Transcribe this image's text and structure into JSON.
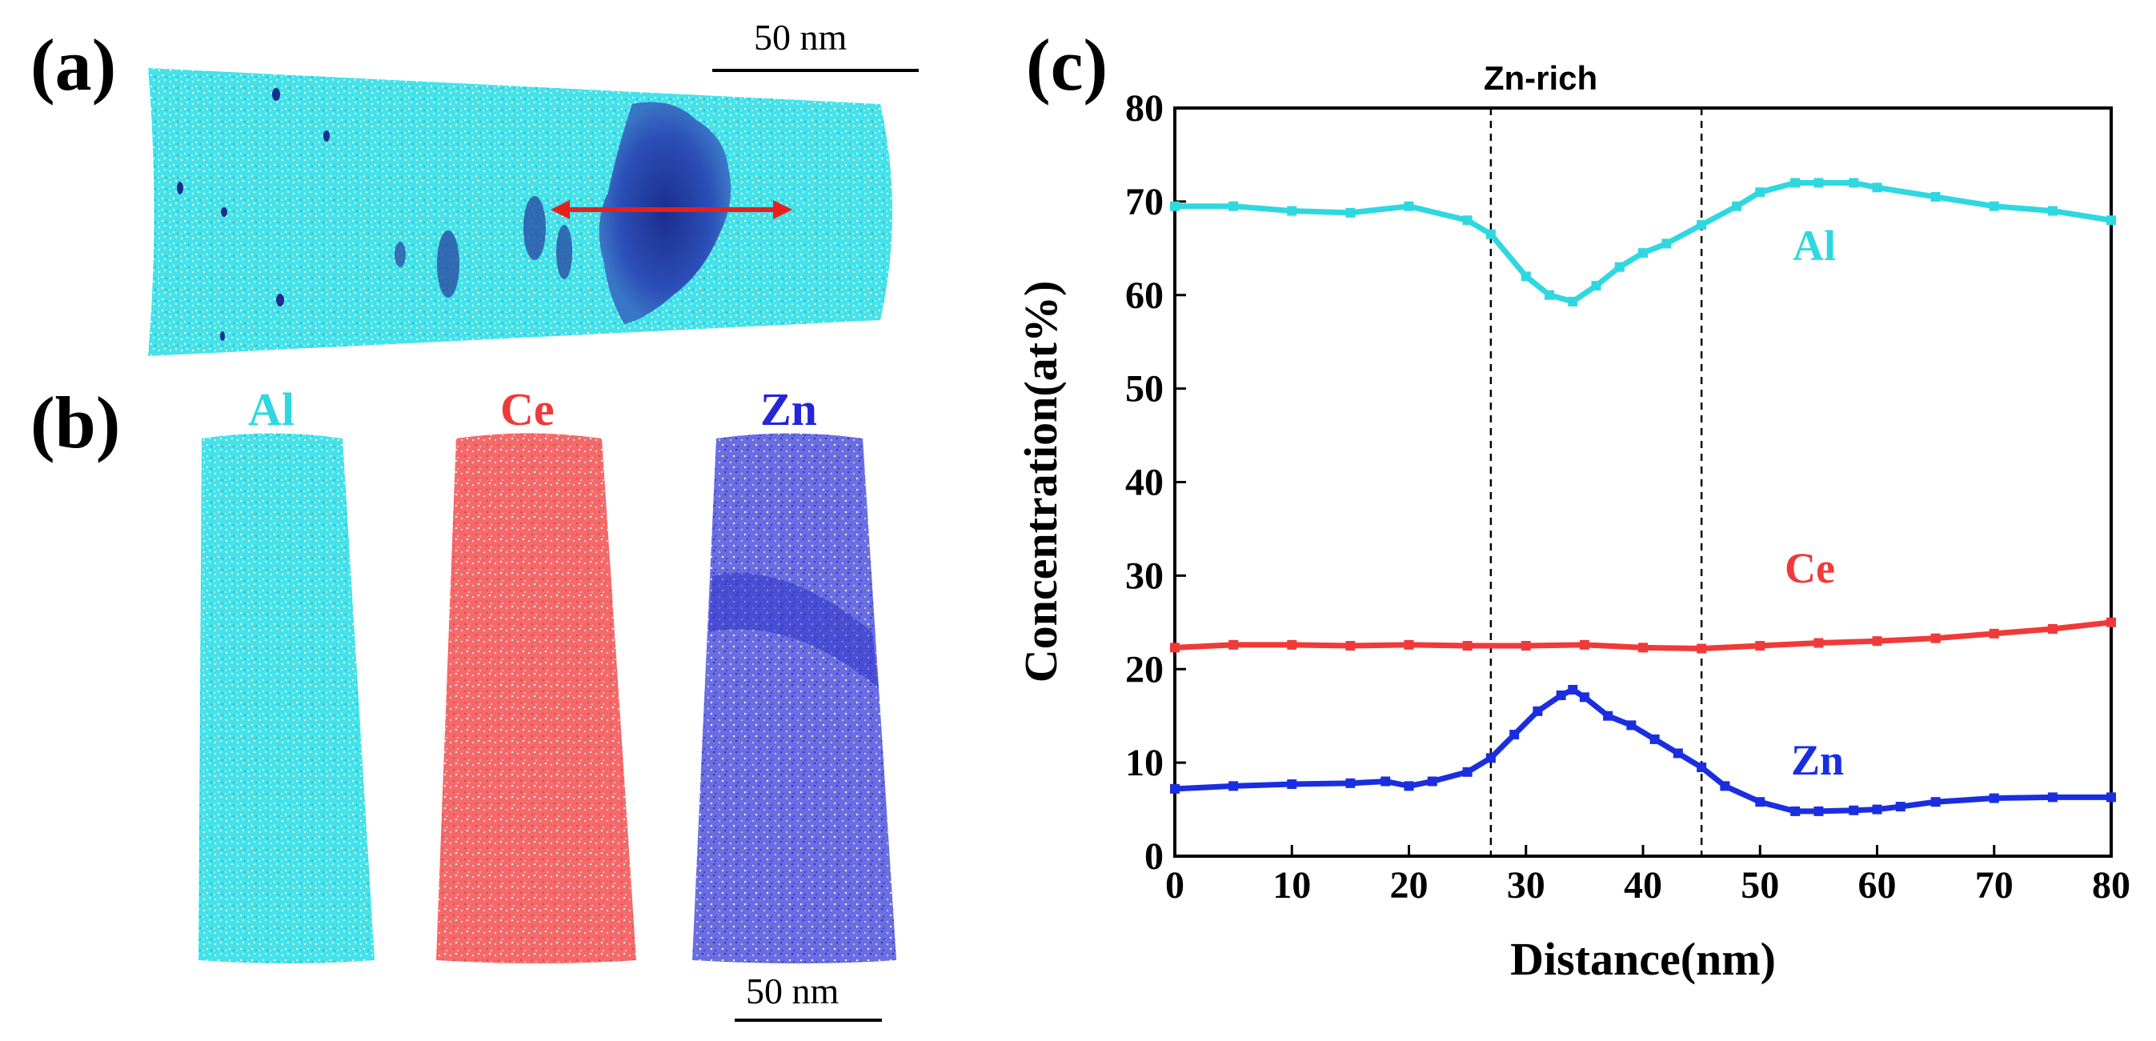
{
  "panels": {
    "a": {
      "label": "(a)",
      "scale_bar_label": "50 nm"
    },
    "b": {
      "label": "(b)",
      "scale_bar_label": "50 nm",
      "maps": [
        {
          "element": "Al",
          "color": "#2fd8e0"
        },
        {
          "element": "Ce",
          "color": "#f25a5a"
        },
        {
          "element": "Zn",
          "color": "#3838d0"
        }
      ]
    },
    "c": {
      "label": "(c)"
    }
  },
  "chart_data": {
    "type": "line",
    "title": "",
    "xlabel": "Distance(nm)",
    "ylabel": "Concentration(at%)",
    "xlim": [
      0,
      80
    ],
    "ylim": [
      0,
      80
    ],
    "xticks": [
      0,
      10,
      20,
      30,
      40,
      50,
      60,
      70,
      80
    ],
    "yticks": [
      0,
      10,
      20,
      30,
      40,
      50,
      60,
      70,
      80
    ],
    "region": {
      "label": "Zn-rich",
      "x_start": 27,
      "x_end": 45
    },
    "series": [
      {
        "name": "Al",
        "color": "#2fd8e0",
        "x": [
          0,
          5,
          10,
          15,
          20,
          25,
          27,
          30,
          32,
          34,
          36,
          38,
          40,
          42,
          45,
          48,
          50,
          53,
          55,
          58,
          60,
          65,
          70,
          75,
          80
        ],
        "y": [
          69.5,
          69.5,
          69,
          68.8,
          69.5,
          68,
          66.5,
          62,
          60,
          59.3,
          61,
          63,
          64.5,
          65.5,
          67.5,
          69.5,
          71,
          72,
          72,
          72,
          71.5,
          70.5,
          69.5,
          69,
          68
        ]
      },
      {
        "name": "Ce",
        "color": "#f03a3a",
        "x": [
          0,
          5,
          10,
          15,
          20,
          25,
          30,
          35,
          40,
          45,
          50,
          55,
          60,
          65,
          70,
          75,
          80
        ],
        "y": [
          22.3,
          22.6,
          22.6,
          22.5,
          22.6,
          22.5,
          22.5,
          22.6,
          22.3,
          22.2,
          22.5,
          22.8,
          23,
          23.3,
          23.8,
          24.3,
          25
        ]
      },
      {
        "name": "Zn",
        "color": "#1a2ee0",
        "x": [
          0,
          5,
          10,
          15,
          18,
          20,
          22,
          25,
          27,
          29,
          31,
          33,
          34,
          35,
          37,
          39,
          41,
          43,
          45,
          47,
          50,
          53,
          55,
          58,
          60,
          62,
          65,
          70,
          75,
          80
        ],
        "y": [
          7.2,
          7.5,
          7.7,
          7.8,
          8,
          7.5,
          8,
          9,
          10.5,
          13,
          15.5,
          17.2,
          17.8,
          17,
          15,
          14,
          12.5,
          11,
          9.5,
          7.5,
          5.8,
          4.8,
          4.8,
          4.9,
          5,
          5.3,
          5.8,
          6.2,
          6.3,
          6.3
        ]
      }
    ]
  }
}
